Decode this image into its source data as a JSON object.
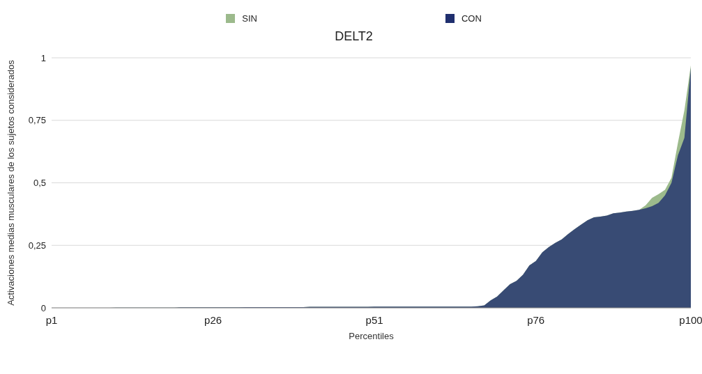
{
  "chart_data": {
    "type": "area",
    "title": "DELT2",
    "xlabel": "Percentiles",
    "ylabel": "Activaciones medias musculares de los sujetos considerados",
    "categories": [
      "p1",
      null,
      null,
      null,
      null,
      null,
      null,
      null,
      null,
      null,
      null,
      null,
      null,
      null,
      null,
      null,
      null,
      null,
      null,
      null,
      null,
      null,
      null,
      null,
      null,
      "p26",
      null,
      null,
      null,
      null,
      null,
      null,
      null,
      null,
      null,
      null,
      null,
      null,
      null,
      null,
      null,
      null,
      null,
      null,
      null,
      null,
      null,
      null,
      null,
      null,
      "p51",
      null,
      null,
      null,
      null,
      null,
      null,
      null,
      null,
      null,
      null,
      null,
      null,
      null,
      null,
      null,
      null,
      null,
      null,
      null,
      null,
      null,
      null,
      null,
      null,
      "p76",
      null,
      null,
      null,
      null,
      null,
      null,
      null,
      null,
      null,
      null,
      null,
      null,
      null,
      null,
      null,
      null,
      null,
      null,
      null,
      null,
      null,
      null,
      null,
      "p100"
    ],
    "series": [
      {
        "name": "SIN",
        "color": "#9cba8c",
        "values": [
          0,
          0,
          0,
          0,
          0,
          0,
          0,
          0,
          0,
          0,
          0.001,
          0.001,
          0.001,
          0.001,
          0.001,
          0.001,
          0.001,
          0.001,
          0.001,
          0.001,
          0.002,
          0.002,
          0.002,
          0.002,
          0.002,
          0.002,
          0.002,
          0.002,
          0.002,
          0.002,
          0.003,
          0.003,
          0.003,
          0.003,
          0.003,
          0.003,
          0.003,
          0.003,
          0.003,
          0.003,
          0.004,
          0.004,
          0.004,
          0.004,
          0.004,
          0.004,
          0.004,
          0.004,
          0.004,
          0.004,
          0.005,
          0.005,
          0.005,
          0.005,
          0.005,
          0.005,
          0.005,
          0.005,
          0.005,
          0.005,
          0.005,
          0.005,
          0.005,
          0.005,
          0.005,
          0.005,
          0.006,
          0.01,
          0.03,
          0.045,
          0.07,
          0.095,
          0.108,
          0.132,
          0.17,
          0.187,
          0.222,
          0.243,
          0.26,
          0.274,
          0.295,
          0.315,
          0.333,
          0.35,
          0.362,
          0.365,
          0.369,
          0.378,
          0.381,
          0.385,
          0.388,
          0.392,
          0.41,
          0.44,
          0.455,
          0.472,
          0.52,
          0.66,
          0.79,
          0.97
        ]
      },
      {
        "name": "CON",
        "color": "#1f2f6e",
        "values": [
          0,
          0,
          0,
          0,
          0,
          0,
          0,
          0,
          0,
          0,
          0.001,
          0.001,
          0.001,
          0.001,
          0.001,
          0.001,
          0.001,
          0.001,
          0.001,
          0.001,
          0.002,
          0.002,
          0.002,
          0.002,
          0.002,
          0.002,
          0.002,
          0.002,
          0.002,
          0.002,
          0.003,
          0.003,
          0.003,
          0.003,
          0.003,
          0.003,
          0.003,
          0.003,
          0.003,
          0.003,
          0.004,
          0.004,
          0.004,
          0.004,
          0.004,
          0.004,
          0.004,
          0.004,
          0.004,
          0.004,
          0.005,
          0.005,
          0.005,
          0.005,
          0.005,
          0.005,
          0.005,
          0.005,
          0.005,
          0.005,
          0.005,
          0.005,
          0.005,
          0.005,
          0.005,
          0.005,
          0.006,
          0.01,
          0.03,
          0.045,
          0.07,
          0.095,
          0.108,
          0.132,
          0.17,
          0.187,
          0.222,
          0.243,
          0.26,
          0.274,
          0.295,
          0.315,
          0.333,
          0.35,
          0.362,
          0.365,
          0.369,
          0.378,
          0.381,
          0.385,
          0.388,
          0.392,
          0.398,
          0.407,
          0.42,
          0.45,
          0.5,
          0.61,
          0.68,
          0.96
        ]
      }
    ],
    "ylim": [
      0,
      1
    ],
    "yticks": [
      {
        "value": 0,
        "label": "0"
      },
      {
        "value": 0.25,
        "label": "0,25"
      },
      {
        "value": 0.5,
        "label": "0,5"
      },
      {
        "value": 0.75,
        "label": "0,75"
      },
      {
        "value": 1,
        "label": "1"
      }
    ],
    "grid": "y",
    "legend": "top"
  }
}
